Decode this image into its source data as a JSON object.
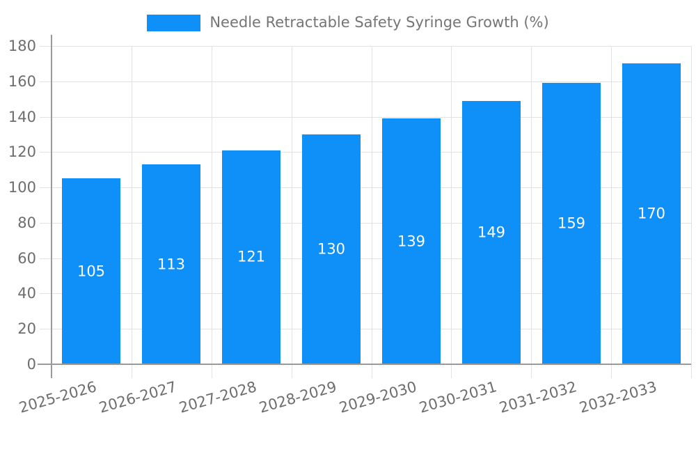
{
  "chart_data": {
    "type": "bar",
    "title": "",
    "series_name": "Needle Retractable Safety Syringe Growth (%)",
    "categories": [
      "2025-2026",
      "2026-2027",
      "2027-2028",
      "2028-2029",
      "2029-2030",
      "2030-2031",
      "2031-2032",
      "2032-2033"
    ],
    "values": [
      105,
      113,
      121,
      130,
      139,
      149,
      159,
      170
    ],
    "bar_value_labels": [
      "105",
      "113",
      "121",
      "130",
      "139",
      "149",
      "159",
      "170"
    ],
    "xlabel": "",
    "ylabel": "",
    "ylim": [
      0,
      180
    ],
    "ytick_step": 20,
    "yticks": [
      0,
      20,
      40,
      60,
      80,
      100,
      120,
      140,
      160,
      180
    ],
    "grid": true,
    "legend_position": "top",
    "colors": {
      "bar": "#0e90f8",
      "bar_label_text": "#ffffff",
      "axis_line": "#9a9a9a",
      "gridline": "#e2e2e2",
      "tick_text": "#6d6d6d",
      "legend_text": "#757575",
      "background": "#ffffff"
    }
  }
}
